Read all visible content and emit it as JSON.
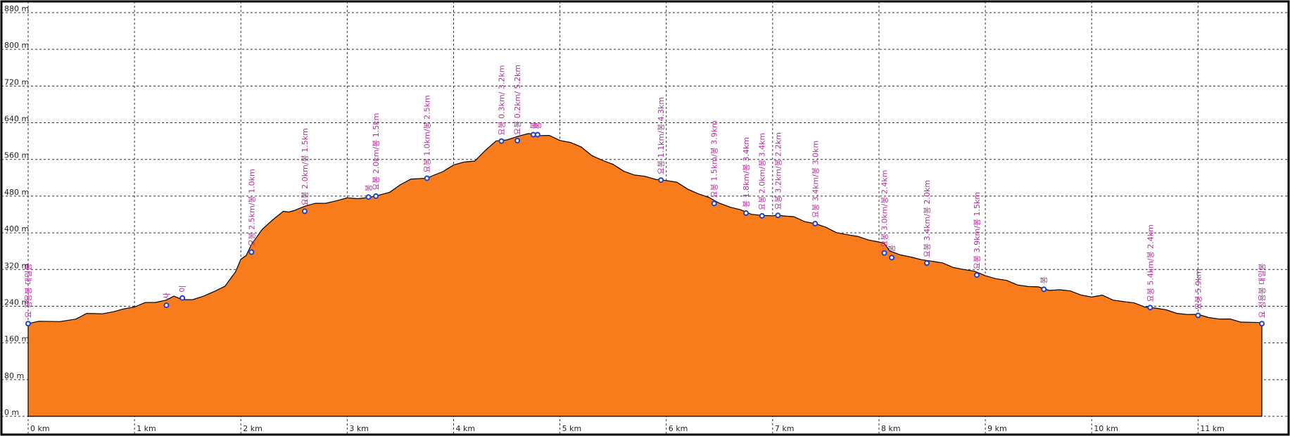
{
  "chart_data": {
    "type": "area",
    "title": "",
    "xlabel": "",
    "ylabel": "",
    "xlim": [
      0,
      11.6
    ],
    "ylim": [
      0,
      880
    ],
    "x_ticks": [
      "0 km",
      "1 km",
      "2 km",
      "3 km",
      "4 km",
      "5 km",
      "6 km",
      "7 km",
      "8 km",
      "9 km",
      "10 km",
      "11 km"
    ],
    "x_tick_values": [
      0,
      1,
      2,
      3,
      4,
      5,
      6,
      7,
      8,
      9,
      10,
      11
    ],
    "y_ticks": [
      "0 m",
      "80 m",
      "160 m",
      "240 m",
      "320 m",
      "400 m",
      "480 m",
      "560 m",
      "640 m",
      "720 m",
      "800 m",
      "880 m"
    ],
    "y_tick_values": [
      0,
      80,
      160,
      240,
      320,
      400,
      480,
      560,
      640,
      720,
      800,
      880
    ],
    "grid": true,
    "fill_color": "#f87c1c",
    "line_color": "#000000",
    "marker_color": "#1f3fd0",
    "label_color": "#b0309a",
    "profile": {
      "x": [
        0,
        0.1,
        0.3,
        0.45,
        0.55,
        0.7,
        0.8,
        0.9,
        1.0,
        1.1,
        1.2,
        1.3,
        1.37,
        1.45,
        1.55,
        1.65,
        1.75,
        1.85,
        1.95,
        2.0,
        2.05,
        2.1,
        2.2,
        2.3,
        2.4,
        2.45,
        2.5,
        2.6,
        2.7,
        2.8,
        2.9,
        3.0,
        3.1,
        3.2,
        3.3,
        3.4,
        3.5,
        3.6,
        3.7,
        3.75,
        3.8,
        3.9,
        4.0,
        4.1,
        4.2,
        4.3,
        4.4,
        4.5,
        4.6,
        4.7,
        4.75,
        4.8,
        4.9,
        5.0,
        5.1,
        5.2,
        5.3,
        5.4,
        5.5,
        5.6,
        5.7,
        5.8,
        5.9,
        6.0,
        6.1,
        6.2,
        6.3,
        6.4,
        6.5,
        6.6,
        6.7,
        6.8,
        6.9,
        7.0,
        7.05,
        7.1,
        7.2,
        7.3,
        7.4,
        7.5,
        7.6,
        7.7,
        7.8,
        7.9,
        8.0,
        8.05,
        8.1,
        8.2,
        8.3,
        8.4,
        8.5,
        8.6,
        8.7,
        8.8,
        8.9,
        9.0,
        9.1,
        9.2,
        9.3,
        9.4,
        9.5,
        9.6,
        9.7,
        9.8,
        9.9,
        10.0,
        10.1,
        10.2,
        10.3,
        10.4,
        10.5,
        10.6,
        10.7,
        10.8,
        10.9,
        11.0,
        11.1,
        11.2,
        11.3,
        11.4,
        11.5,
        11.6
      ],
      "y": [
        202,
        205,
        208,
        212,
        222,
        225,
        228,
        232,
        240,
        248,
        246,
        255,
        262,
        252,
        256,
        262,
        270,
        285,
        315,
        340,
        352,
        375,
        405,
        430,
        447,
        443,
        450,
        458,
        462,
        466,
        470,
        474,
        476,
        477,
        480,
        490,
        505,
        515,
        520,
        519,
        522,
        535,
        548,
        552,
        558,
        580,
        598,
        604,
        610,
        614,
        617,
        612,
        610,
        603,
        597,
        585,
        570,
        558,
        547,
        536,
        526,
        521,
        518,
        514,
        508,
        497,
        485,
        475,
        466,
        456,
        448,
        442,
        438,
        435,
        440,
        437,
        433,
        426,
        420,
        410,
        402,
        396,
        390,
        386,
        380,
        375,
        362,
        352,
        345,
        343,
        338,
        332,
        326,
        320,
        314,
        308,
        300,
        294,
        288,
        283,
        280,
        276,
        276,
        271,
        266,
        260,
        262,
        255,
        250,
        245,
        240,
        236,
        230,
        226,
        222,
        220,
        217,
        212,
        210,
        207,
        205,
        202
      ]
    },
    "waypoints": [
      {
        "x": 0.0,
        "y": 202,
        "label": "요 정용봉 대일봉"
      },
      {
        "x": 1.3,
        "y": 242,
        "label": "사"
      },
      {
        "x": 1.45,
        "y": 258,
        "label": "이"
      },
      {
        "x": 2.1,
        "y": 358,
        "label": "요봉 2.5km/봉 1.0km"
      },
      {
        "x": 2.6,
        "y": 447,
        "label": "요봉 2.0km/봉 1.5km"
      },
      {
        "x": 3.2,
        "y": 478,
        "label": "봉"
      },
      {
        "x": 3.27,
        "y": 480,
        "label": "요봉 2.0km/봉 1.5km"
      },
      {
        "x": 3.75,
        "y": 519,
        "label": "요봉 1.0km/봉 2.5km"
      },
      {
        "x": 4.45,
        "y": 600,
        "label": "요봉 0.3km/ 3.2km"
      },
      {
        "x": 4.6,
        "y": 601,
        "label": "요봉 0.2km/ 5.2km"
      },
      {
        "x": 4.75,
        "y": 614,
        "label": "봉"
      },
      {
        "x": 4.79,
        "y": 614,
        "label": "봉"
      },
      {
        "x": 5.95,
        "y": 515,
        "label": "요봉 1.1km/봉 4.3km"
      },
      {
        "x": 6.45,
        "y": 464,
        "label": "요봉 1.5km/봉 3.9km"
      },
      {
        "x": 6.75,
        "y": 443,
        "label": "봉 1.8km/봉 3.4km"
      },
      {
        "x": 6.9,
        "y": 437,
        "label": "요봉 2.0km/봉 3.4km"
      },
      {
        "x": 7.05,
        "y": 438,
        "label": "요봉 3.2km/봉 2.2km"
      },
      {
        "x": 7.4,
        "y": 420,
        "label": "요봉 3.4km/봉 3.0km"
      },
      {
        "x": 8.05,
        "y": 356,
        "label": "요봉 3.0km/봉 2.4km"
      },
      {
        "x": 8.12,
        "y": 346,
        "label": "봉"
      },
      {
        "x": 8.45,
        "y": 334,
        "label": "요봉 3.4km/봉 2.0km"
      },
      {
        "x": 8.92,
        "y": 308,
        "label": "요봉 3.9km/봉 1.5km"
      },
      {
        "x": 9.55,
        "y": 277,
        "label": "봉"
      },
      {
        "x": 10.55,
        "y": 237,
        "label": "요봉 5.4km/봉 2.4km"
      },
      {
        "x": 11.0,
        "y": 220,
        "label": "요봉 5.9km"
      },
      {
        "x": 11.6,
        "y": 202,
        "label": "요 정용봉 대일봉"
      }
    ]
  }
}
